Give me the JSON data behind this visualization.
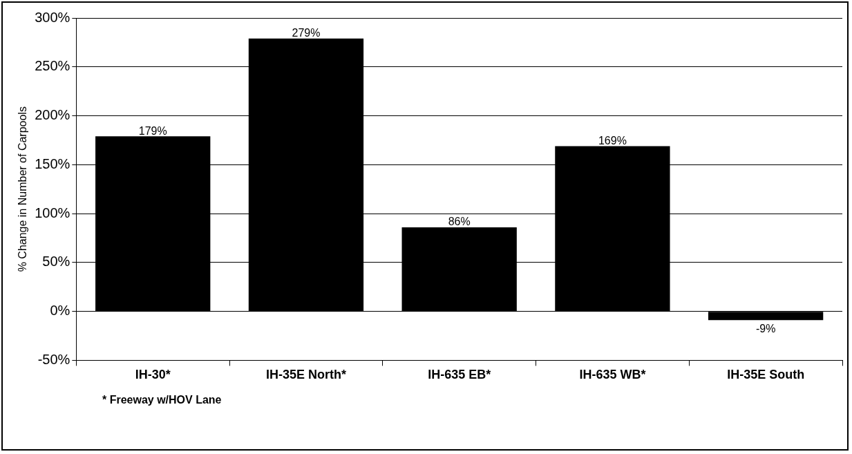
{
  "chart_data": {
    "type": "bar",
    "ylabel": "% Change in Number of Carpools",
    "categories": [
      "IH-30*",
      "IH-35E North*",
      "IH-635 EB*",
      "IH-635 WB*",
      "IH-35E South"
    ],
    "values": [
      179,
      279,
      86,
      169,
      -9
    ],
    "value_labels": [
      "179%",
      "279%",
      "86%",
      "169%",
      "-9%"
    ],
    "color": "#000000",
    "ylim": [
      -50,
      300
    ],
    "yticks": [
      {
        "value": -50,
        "label": "-50%"
      },
      {
        "value": 0,
        "label": "0%"
      },
      {
        "value": 50,
        "label": "50%"
      },
      {
        "value": 100,
        "label": "100%"
      },
      {
        "value": 150,
        "label": "150%"
      },
      {
        "value": 200,
        "label": "200%"
      },
      {
        "value": 250,
        "label": "250%"
      },
      {
        "value": 300,
        "label": "300%"
      }
    ],
    "grid": "y",
    "legend": false,
    "annotations": [
      "* Freeway w/HOV Lane"
    ]
  }
}
